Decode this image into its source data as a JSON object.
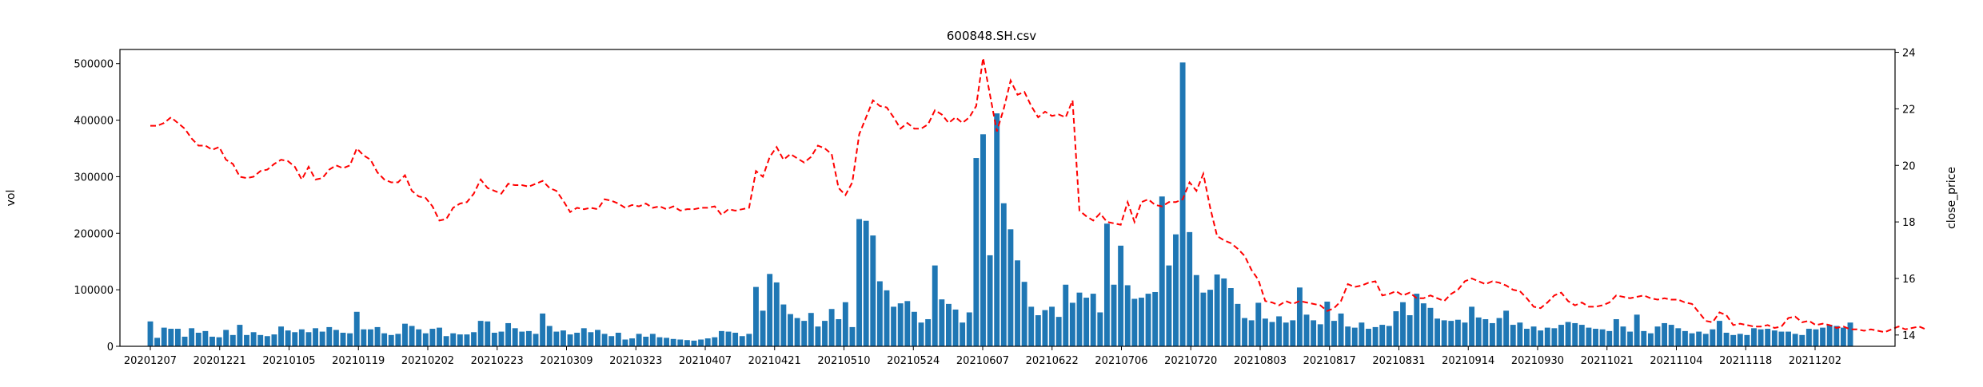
{
  "chart_data": {
    "type": "bar",
    "title": "600848.SH.csv",
    "x_tick_labels": [
      "20201207",
      "20201221",
      "20210105",
      "20210119",
      "20210202",
      "20210223",
      "20210309",
      "20210323",
      "20210407",
      "20210421",
      "20210510",
      "20210524",
      "20210607",
      "20210622",
      "20210706",
      "20210720",
      "20210803",
      "20210817",
      "20210831",
      "20210914",
      "20210930",
      "20211021",
      "20211104",
      "20211118",
      "20211202"
    ],
    "y_left": {
      "label": "vol",
      "lim": [
        0,
        525000
      ],
      "ticks": [
        0,
        100000,
        200000,
        300000,
        400000,
        500000
      ]
    },
    "y_right": {
      "label": "close_price",
      "lim": [
        13.6,
        24.1
      ],
      "ticks": [
        14,
        16,
        18,
        20,
        22,
        24
      ]
    },
    "grid": false,
    "series": [
      {
        "kind": "bar",
        "color": "#1f77b4",
        "axis": "left",
        "values": [
          44000,
          15000,
          33000,
          31000,
          31000,
          17000,
          32000,
          24000,
          27000,
          17000,
          16000,
          29000,
          20000,
          38000,
          20000,
          25000,
          20000,
          18000,
          21000,
          35000,
          28000,
          25000,
          30000,
          25000,
          32000,
          26000,
          34000,
          29000,
          24000,
          23000,
          61000,
          30000,
          30000,
          34000,
          23000,
          20000,
          22000,
          40000,
          36000,
          30000,
          23000,
          31000,
          33000,
          18000,
          23000,
          21000,
          21000,
          25000,
          45000,
          44000,
          24000,
          26000,
          41000,
          32000,
          26000,
          27000,
          22000,
          58000,
          36000,
          26000,
          28000,
          21000,
          24000,
          32000,
          25000,
          29000,
          22000,
          18000,
          24000,
          12000,
          14000,
          22000,
          17000,
          22000,
          16000,
          15000,
          13000,
          12000,
          11000,
          10000,
          12000,
          14000,
          16000,
          27000,
          26000,
          24000,
          18000,
          22000,
          105000,
          63000,
          128000,
          113000,
          74000,
          57000,
          50000,
          45000,
          59000,
          35000,
          45000,
          66000,
          48000,
          78000,
          34000,
          225000,
          222000,
          196000,
          115000,
          99000,
          70000,
          76000,
          80000,
          61000,
          42000,
          48000,
          143000,
          83000,
          75000,
          65000,
          42000,
          60000,
          333000,
          375000,
          161000,
          412000,
          253000,
          207000,
          152000,
          114000,
          70000,
          55000,
          64000,
          70000,
          52000,
          109000,
          77000,
          95000,
          86000,
          93000,
          60000,
          217000,
          109000,
          178000,
          108000,
          84000,
          86000,
          93000,
          96000,
          265000,
          143000,
          198000,
          502000,
          202000,
          126000,
          95000,
          100000,
          127000,
          120000,
          103000,
          75000,
          50000,
          46000,
          77000,
          49000,
          43000,
          53000,
          42000,
          46000,
          104000,
          56000,
          46000,
          39000,
          79000,
          45000,
          58000,
          35000,
          33000,
          42000,
          31000,
          34000,
          38000,
          36000,
          62000,
          78000,
          55000,
          93000,
          76000,
          68000,
          49000,
          46000,
          45000,
          47000,
          42000,
          70000,
          51000,
          48000,
          41000,
          50000,
          63000,
          38000,
          42000,
          31000,
          35000,
          28000,
          33000,
          32000,
          38000,
          43000,
          41000,
          38000,
          33000,
          31000,
          30000,
          27000,
          48000,
          35000,
          26000,
          56000,
          27000,
          23000,
          35000,
          41000,
          38000,
          32000,
          27000,
          23000,
          26000,
          22000,
          30000,
          45000,
          24000,
          20000,
          22000,
          20000,
          32000,
          30000,
          31000,
          28000,
          26000,
          26000,
          22000,
          20000,
          31000,
          30000,
          33000,
          38000,
          36000,
          33000,
          42000
        ]
      },
      {
        "kind": "line",
        "name": "close_price",
        "color": "#ff0000",
        "dash": true,
        "axis": "right",
        "values": [
          21.4,
          21.4,
          21.5,
          21.7,
          21.5,
          21.3,
          20.95,
          20.7,
          20.7,
          20.55,
          20.65,
          20.2,
          20.05,
          19.6,
          19.55,
          19.6,
          19.8,
          19.85,
          20.05,
          20.2,
          20.15,
          19.95,
          19.5,
          19.95,
          19.5,
          19.55,
          19.85,
          20.0,
          19.9,
          20.0,
          20.6,
          20.35,
          20.2,
          19.75,
          19.5,
          19.4,
          19.4,
          19.65,
          19.1,
          18.9,
          18.85,
          18.55,
          18.05,
          18.1,
          18.5,
          18.65,
          18.7,
          19.0,
          19.5,
          19.2,
          19.1,
          19.0,
          19.35,
          19.3,
          19.3,
          19.25,
          19.35,
          19.45,
          19.2,
          19.1,
          18.75,
          18.35,
          18.5,
          18.45,
          18.5,
          18.45,
          18.8,
          18.75,
          18.65,
          18.5,
          18.6,
          18.55,
          18.65,
          18.5,
          18.55,
          18.45,
          18.55,
          18.4,
          18.45,
          18.45,
          18.5,
          18.5,
          18.55,
          18.25,
          18.45,
          18.4,
          18.45,
          18.5,
          19.8,
          19.6,
          20.3,
          20.65,
          20.2,
          20.4,
          20.25,
          20.1,
          20.3,
          20.7,
          20.6,
          20.4,
          19.2,
          18.95,
          19.4,
          21.1,
          21.7,
          22.3,
          22.1,
          22.05,
          21.7,
          21.3,
          21.5,
          21.3,
          21.3,
          21.45,
          21.95,
          21.8,
          21.5,
          21.7,
          21.5,
          21.7,
          22.1,
          23.8,
          22.5,
          21.2,
          22.0,
          23.0,
          22.5,
          22.6,
          22.1,
          21.7,
          21.9,
          21.75,
          21.8,
          21.7,
          22.3,
          18.4,
          18.2,
          18.05,
          18.3,
          18.0,
          17.95,
          17.9,
          18.7,
          18.0,
          18.7,
          18.8,
          18.6,
          18.55,
          18.7,
          18.7,
          18.8,
          19.4,
          19.1,
          19.7,
          18.5,
          17.5,
          17.35,
          17.25,
          17.05,
          16.8,
          16.3,
          15.95,
          15.2,
          15.15,
          15.05,
          15.2,
          15.1,
          15.2,
          15.15,
          15.1,
          15.05,
          14.85,
          14.95,
          15.2,
          15.8,
          15.7,
          15.75,
          15.85,
          15.9,
          15.4,
          15.45,
          15.55,
          15.4,
          15.5,
          15.3,
          15.3,
          15.4,
          15.3,
          15.2,
          15.45,
          15.6,
          15.9,
          16.0,
          15.9,
          15.8,
          15.9,
          15.85,
          15.75,
          15.6,
          15.55,
          15.3,
          15.0,
          14.95,
          15.15,
          15.4,
          15.5,
          15.2,
          15.05,
          15.15,
          15.0,
          15.0,
          15.05,
          15.15,
          15.4,
          15.35,
          15.3,
          15.35,
          15.4,
          15.3,
          15.25,
          15.3,
          15.25,
          15.25,
          15.15,
          15.1,
          14.8,
          14.5,
          14.45,
          14.8,
          14.7,
          14.35,
          14.4,
          14.35,
          14.3,
          14.3,
          14.35,
          14.25,
          14.3,
          14.6,
          14.65,
          14.45,
          14.5,
          14.35,
          14.4,
          14.35,
          14.25,
          14.3,
          14.2,
          14.2,
          14.15,
          14.2,
          14.15,
          14.1,
          14.2,
          14.3,
          14.2,
          14.25,
          14.3,
          14.2
        ]
      }
    ]
  }
}
